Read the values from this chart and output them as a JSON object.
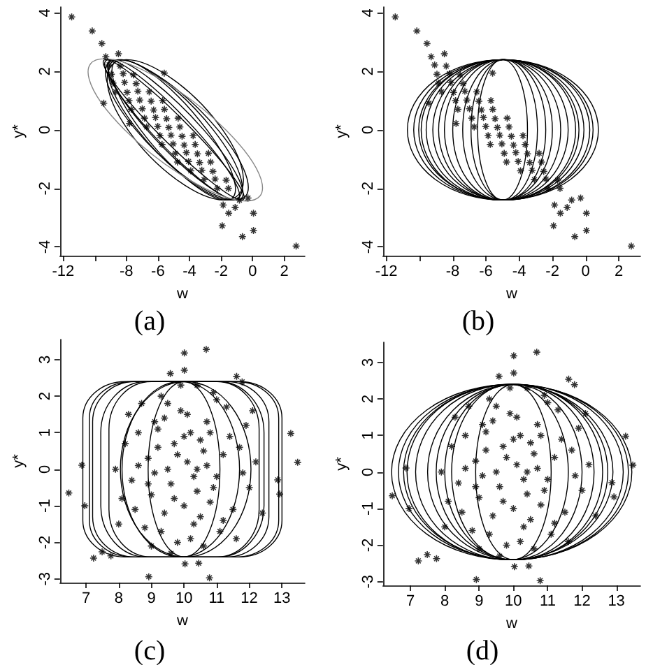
{
  "chart_data": [
    {
      "type": "scatter",
      "title": "(a)",
      "xlabel": "w",
      "ylabel": "y*",
      "xlim": [
        -12.2,
        3.3
      ],
      "ylim": [
        -4.3,
        4.2
      ],
      "xticks": [
        -12,
        {
          "value": -10,
          "label": null
        },
        -8,
        -6,
        -4,
        -2,
        0,
        2
      ],
      "yticks": [
        -4,
        -2,
        0,
        2,
        4
      ],
      "grid": false,
      "marker": "cross",
      "color": "#000000",
      "x": [
        -11.46,
        -10.16,
        -9.55,
        -9.3,
        -8.5,
        -9.43,
        -5.6,
        -7.8,
        -1.87,
        -1.11,
        -0.3,
        0.05,
        -1.93,
        -0.65,
        0.05,
        2.75,
        -1.52,
        -0.84,
        -9.09,
        -8.39,
        -8.95,
        -8.2,
        -7.55,
        -8.85,
        -8.11,
        -7.38,
        -8.67,
        -7.95,
        -7.27,
        -6.55,
        -7.83,
        -7.15,
        -6.43,
        -5.7,
        -7.69,
        -6.99,
        -6.27,
        -5.59,
        -6.85,
        -6.15,
        -5.45,
        -4.72,
        -6.71,
        -6.01,
        -5.31,
        -4.61,
        -5.87,
        -5.17,
        -4.47,
        -3.77,
        -5.74,
        -5.04,
        -4.34,
        -3.64,
        -4.9,
        -4.2,
        -3.5,
        -2.8,
        -4.76,
        -4.06,
        -3.36,
        -2.66,
        -3.92,
        -3.22,
        -2.52,
        -3.08,
        -2.38,
        -1.68,
        -2.24,
        -1.54
      ],
      "values": [
        3.86,
        3.38,
        2.95,
        2.5,
        2.6,
        0.91,
        1.94,
        0.22,
        -2.57,
        -2.65,
        -2.33,
        -2.85,
        -3.28,
        -3.65,
        -3.44,
        -3.97,
        -2.85,
        -2.4,
        2.22,
        2.18,
        1.9,
        1.92,
        1.88,
        1.6,
        1.62,
        1.58,
        1.3,
        1.28,
        1.32,
        1.3,
        1.0,
        1.02,
        0.98,
        1.0,
        0.7,
        0.72,
        0.68,
        0.7,
        0.4,
        0.42,
        0.38,
        0.4,
        0.1,
        0.12,
        0.08,
        0.1,
        -0.2,
        -0.18,
        -0.22,
        -0.2,
        -0.5,
        -0.48,
        -0.52,
        -0.5,
        -0.8,
        -0.78,
        -0.82,
        -0.8,
        -1.1,
        -1.08,
        -1.12,
        -1.1,
        -1.4,
        -1.38,
        -1.42,
        -1.7,
        -1.68,
        -1.72,
        -2.0,
        -2.0
      ]
    },
    {
      "type": "scatter",
      "title": "(b)",
      "xlabel": "w",
      "ylabel": "y*",
      "xlim": [
        -12.2,
        3.3
      ],
      "ylim": [
        -4.3,
        4.2
      ],
      "xticks": [
        -12,
        {
          "value": -10,
          "label": null
        },
        -8,
        -6,
        -4,
        -2,
        0,
        2
      ],
      "yticks": [
        -4,
        -2,
        0,
        2,
        4
      ],
      "grid": false,
      "marker": "cross",
      "color": "#000000",
      "x": [
        -11.46,
        -10.16,
        -9.55,
        -9.3,
        -8.5,
        -9.43,
        -5.6,
        -7.8,
        -1.87,
        -1.11,
        -0.3,
        0.05,
        -1.93,
        -0.65,
        0.05,
        2.75,
        -1.52,
        -0.84,
        -9.09,
        -8.39,
        -8.95,
        -8.2,
        -7.55,
        -8.85,
        -8.11,
        -7.38,
        -8.67,
        -7.95,
        -7.27,
        -6.55,
        -7.83,
        -7.15,
        -6.43,
        -5.7,
        -7.69,
        -6.99,
        -6.27,
        -5.59,
        -6.85,
        -6.15,
        -5.45,
        -4.72,
        -6.71,
        -6.01,
        -5.31,
        -4.61,
        -5.87,
        -5.17,
        -4.47,
        -3.77,
        -5.74,
        -5.04,
        -4.34,
        -3.64,
        -4.9,
        -4.2,
        -3.5,
        -2.8,
        -4.76,
        -4.06,
        -3.36,
        -2.66,
        -3.92,
        -3.22,
        -2.52,
        -3.08,
        -2.38,
        -1.68,
        -2.24,
        -1.54
      ],
      "values": [
        3.86,
        3.38,
        2.95,
        2.5,
        2.6,
        0.91,
        1.94,
        0.22,
        -2.57,
        -2.65,
        -2.33,
        -2.85,
        -3.28,
        -3.65,
        -3.44,
        -3.97,
        -2.85,
        -2.4,
        2.22,
        2.18,
        1.9,
        1.92,
        1.88,
        1.6,
        1.62,
        1.58,
        1.3,
        1.28,
        1.32,
        1.3,
        1.0,
        1.02,
        0.98,
        1.0,
        0.7,
        0.72,
        0.68,
        0.7,
        0.4,
        0.42,
        0.38,
        0.4,
        0.1,
        0.12,
        0.08,
        0.1,
        -0.2,
        -0.18,
        -0.22,
        -0.2,
        -0.5,
        -0.48,
        -0.52,
        -0.5,
        -0.8,
        -0.78,
        -0.82,
        -0.8,
        -1.1,
        -1.08,
        -1.12,
        -1.1,
        -1.4,
        -1.38,
        -1.42,
        -1.7,
        -1.68,
        -1.72,
        -2.0,
        -2.0
      ]
    },
    {
      "type": "scatter",
      "title": "(c)",
      "xlabel": "w",
      "ylabel": "y*",
      "xlim": [
        6.2,
        13.7
      ],
      "ylim": [
        -3.1,
        3.55
      ],
      "xticks": [
        7,
        8,
        9,
        10,
        11,
        12,
        13
      ],
      "yticks": [
        -3,
        -2,
        -1,
        0,
        1,
        2,
        3
      ],
      "grid": false,
      "marker": "cross",
      "color": "#000000",
      "x": [
        10.01,
        10.68,
        10.01,
        9.58,
        11.61,
        11.78,
        13.27,
        13.48,
        6.47,
        6.87,
        6.96,
        7.23,
        7.49,
        7.76,
        8.92,
        10.78,
        10.03,
        10.45,
        12.93,
        12.87,
        10.1,
        9.6,
        10.5,
        9.2,
        10.8,
        9.9,
        10.3,
        8.9,
        11.2,
        9.4,
        10.7,
        9.0,
        11.0,
        9.7,
        10.4,
        8.6,
        11.5,
        9.3,
        10.9,
        9.8,
        10.6,
        8.4,
        11.7,
        8.8,
        11.3,
        9.5,
        10.2,
        10.0,
        9.1,
        11.1,
        8.2,
        12.0,
        8.5,
        11.9,
        9.9,
        10.4,
        9.6,
        10.7,
        9.2,
        10.3,
        8.7,
        11.6,
        8.1,
        12.2,
        9.4,
        10.5,
        9.0,
        11.0,
        8.3,
        11.8,
        9.7,
        10.1,
        10.9,
        9.3,
        8.9,
        11.4,
        10.6,
        9.5,
        10.2,
        8.6,
        12.4,
        7.9,
        12.1,
        8.0,
        9.8,
        10.4,
        10.0,
        9.1,
        11.2,
        10.8
      ],
      "values": [
        3.18,
        3.28,
        2.71,
        2.62,
        2.54,
        2.39,
        0.98,
        0.19,
        -0.65,
        0.11,
        -1.0,
        -2.43,
        -2.26,
        -2.37,
        -2.94,
        -2.97,
        -2.59,
        -2.57,
        -0.68,
        -0.29,
        0.2,
        -0.4,
        0.8,
        1.1,
        -0.9,
        1.6,
        -1.5,
        0.3,
        0.4,
        -1.2,
        1.3,
        -0.7,
        -0.2,
        0.7,
        -0.6,
        1.0,
        -1.1,
        2.0,
        2.1,
        -2.0,
        -2.1,
        -0.3,
        0.6,
        -1.6,
        1.7,
        0.0,
        1.0,
        -1.0,
        -0.1,
        -1.7,
        0.7,
        -0.5,
        -1.1,
        1.2,
        2.3,
        2.3,
        -2.3,
        0.1,
        0.6,
        -0.2,
        1.8,
        -1.9,
        -0.8,
        0.2,
        1.4,
        -1.3,
        -2.1,
        1.9,
        1.5,
        -0.1,
        -0.8,
        1.5,
        -0.5,
        -1.7,
        -0.4,
        0.9,
        0.5,
        1.8,
        -1.9,
        0.1,
        -1.2,
        0.0,
        1.6,
        -1.5,
        0.4,
        0.0,
        0.9,
        1.3,
        -1.4,
        1.0
      ]
    },
    {
      "type": "scatter",
      "title": "(d)",
      "xlabel": "w",
      "ylabel": "y*",
      "xlim": [
        6.2,
        13.7
      ],
      "ylim": [
        -3.1,
        3.55
      ],
      "xticks": [
        7,
        8,
        9,
        10,
        11,
        12,
        13
      ],
      "yticks": [
        -3,
        -2,
        -1,
        0,
        1,
        2,
        3
      ],
      "grid": false,
      "marker": "cross",
      "color": "#000000",
      "x": [
        10.01,
        10.68,
        10.01,
        9.58,
        11.61,
        11.78,
        13.27,
        13.48,
        6.47,
        6.87,
        6.96,
        7.23,
        7.49,
        7.76,
        8.92,
        10.78,
        10.03,
        10.45,
        12.93,
        12.87,
        10.1,
        9.6,
        10.5,
        9.2,
        10.8,
        9.9,
        10.3,
        8.9,
        11.2,
        9.4,
        10.7,
        9.0,
        11.0,
        9.7,
        10.4,
        8.6,
        11.5,
        9.3,
        10.9,
        9.8,
        10.6,
        8.4,
        11.7,
        8.8,
        11.3,
        9.5,
        10.2,
        10.0,
        9.1,
        11.1,
        8.2,
        12.0,
        8.5,
        11.9,
        9.9,
        10.4,
        9.6,
        10.7,
        9.2,
        10.3,
        8.7,
        11.6,
        8.1,
        12.2,
        9.4,
        10.5,
        9.0,
        11.0,
        8.3,
        11.8,
        9.7,
        10.1,
        10.9,
        9.3,
        8.9,
        11.4,
        10.6,
        9.5,
        10.2,
        8.6,
        12.4,
        7.9,
        12.1,
        8.0,
        9.8,
        10.4,
        10.0,
        9.1,
        11.2,
        10.8
      ],
      "values": [
        3.18,
        3.28,
        2.71,
        2.62,
        2.54,
        2.39,
        0.98,
        0.19,
        -0.65,
        0.11,
        -1.0,
        -2.43,
        -2.26,
        -2.37,
        -2.94,
        -2.97,
        -2.59,
        -2.57,
        -0.68,
        -0.29,
        0.2,
        -0.4,
        0.8,
        1.1,
        -0.9,
        1.6,
        -1.5,
        0.3,
        0.4,
        -1.2,
        1.3,
        -0.7,
        -0.2,
        0.7,
        -0.6,
        1.0,
        -1.1,
        2.0,
        2.1,
        -2.0,
        -2.1,
        -0.3,
        0.6,
        -1.6,
        1.7,
        0.0,
        1.0,
        -1.0,
        -0.1,
        -1.7,
        0.7,
        -0.5,
        -1.1,
        1.2,
        2.3,
        2.3,
        -2.3,
        0.1,
        0.6,
        -0.2,
        1.8,
        -1.9,
        -0.8,
        0.2,
        1.4,
        -1.3,
        -2.1,
        1.9,
        1.5,
        -0.1,
        -0.8,
        1.5,
        -0.5,
        -1.7,
        -0.4,
        0.9,
        0.5,
        1.8,
        -1.9,
        0.1,
        -1.2,
        0.0,
        1.6,
        -1.5,
        0.4,
        0.0,
        0.9,
        1.3,
        -1.4,
        1.0
      ]
    }
  ]
}
